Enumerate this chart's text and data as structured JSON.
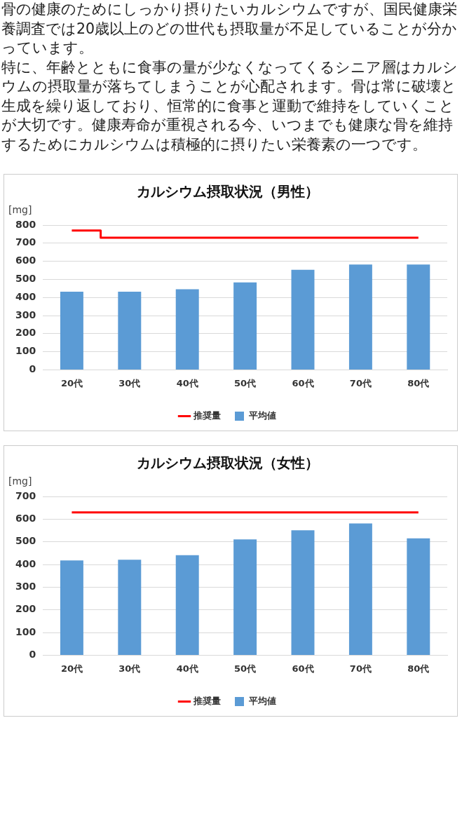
{
  "chart_data": [
    {
      "type": "other",
      "annotations": [
        "骨の健康のためにしっかり摂りたいカルシウムですが、国民健康栄養調査では20歳以上のどの世代も摂取量が不足していることが分かっています。",
        "特に、年齢とともに食事の量が少なくなってくるシニア層はカルシウムの摂取量が落ちてしまうことが心配されます。骨は常に破壊と生成を繰り返しており、恒常的に食事と運動で維持をしていくことが大切です。健康寿命が重視される今、いつまでも健康な骨を維持するためにカルシウムは積極的に摂りたい栄養素の一つです。"
      ]
    },
    {
      "type": "bar",
      "title": "カルシウム摂取状況（男性）",
      "ylabel": "[mg]",
      "categories": [
        "20代",
        "30代",
        "40代",
        "50代",
        "60代",
        "70代",
        "80代"
      ],
      "series": [
        {
          "name": "平均値",
          "color": "#5b9bd5",
          "values": [
            432,
            432,
            445,
            483,
            553,
            582,
            582
          ]
        },
        {
          "name": "推奨量",
          "type": "step",
          "color": "#ff0000",
          "values": [
            770,
            730,
            730,
            730,
            730,
            730,
            730
          ]
        }
      ],
      "ylim": [
        0,
        800
      ],
      "yticks": [
        0,
        100,
        200,
        300,
        400,
        500,
        600,
        700,
        800
      ],
      "grid": "y",
      "legend": "bottom"
    },
    {
      "type": "bar",
      "title": "カルシウム摂取状況（女性）",
      "ylabel": "[mg]",
      "categories": [
        "20代",
        "30代",
        "40代",
        "50代",
        "60代",
        "70代",
        "80代"
      ],
      "series": [
        {
          "name": "平均値",
          "color": "#5b9bd5",
          "values": [
            418,
            421,
            441,
            511,
            551,
            581,
            515
          ]
        },
        {
          "name": "推奨量",
          "type": "step",
          "color": "#ff0000",
          "values": [
            630,
            630,
            630,
            630,
            630,
            630,
            630
          ]
        }
      ],
      "ylim": [
        0,
        700
      ],
      "yticks": [
        0,
        100,
        200,
        300,
        400,
        500,
        600,
        700
      ],
      "grid": "y",
      "legend": "bottom"
    }
  ]
}
